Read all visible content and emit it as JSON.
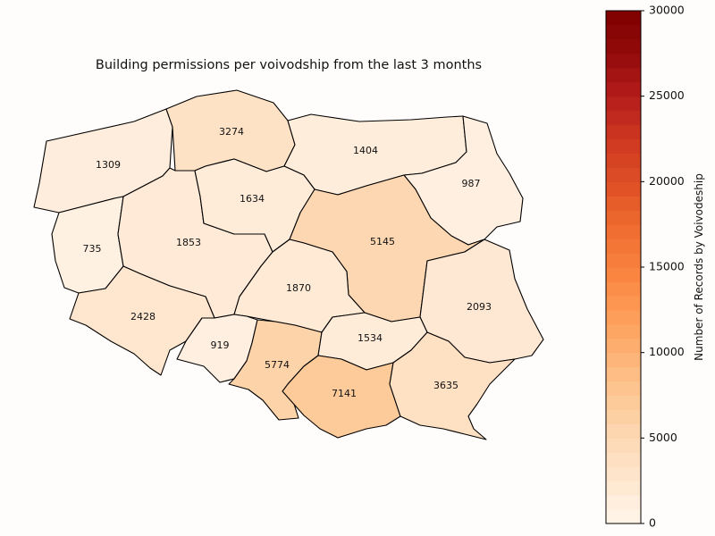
{
  "chart_data": {
    "type": "choropleth",
    "title": "Building permissions per voivodship from the last 3 months",
    "colorbar": {
      "label": "Number of Records by Voivodeship",
      "min": 0,
      "max": 30000,
      "ticks": [
        "0",
        "5000",
        "10000",
        "15000",
        "20000",
        "25000",
        "30000"
      ],
      "colors": [
        "#fff5eb",
        "#fee6ce",
        "#fdd8b3",
        "#fdc895",
        "#fdb173",
        "#fd9a55",
        "#f8813d",
        "#ee6a2e",
        "#de4f26",
        "#cd3720",
        "#b41d1b",
        "#930b0b",
        "#7f0000"
      ],
      "cmap": "OrRd"
    },
    "regions": [
      {
        "name": "zachodniopomorskie",
        "value": 1309
      },
      {
        "name": "pomorskie",
        "value": 3274
      },
      {
        "name": "warminsko-mazurskie",
        "value": 1404
      },
      {
        "name": "podlaskie",
        "value": 987
      },
      {
        "name": "lubuskie",
        "value": 735
      },
      {
        "name": "wielkopolskie",
        "value": 1853
      },
      {
        "name": "kujawsko-pomorskie",
        "value": 1634
      },
      {
        "name": "mazowieckie",
        "value": 5145
      },
      {
        "name": "lodzkie",
        "value": 1870
      },
      {
        "name": "lubelskie",
        "value": 2093
      },
      {
        "name": "dolnoslaskie",
        "value": 2428
      },
      {
        "name": "opolskie",
        "value": 919
      },
      {
        "name": "slaskie",
        "value": 5774
      },
      {
        "name": "swietokrzyskie",
        "value": 1534
      },
      {
        "name": "malopolskie",
        "value": 7141
      },
      {
        "name": "podkarpackie",
        "value": 3635
      }
    ]
  }
}
